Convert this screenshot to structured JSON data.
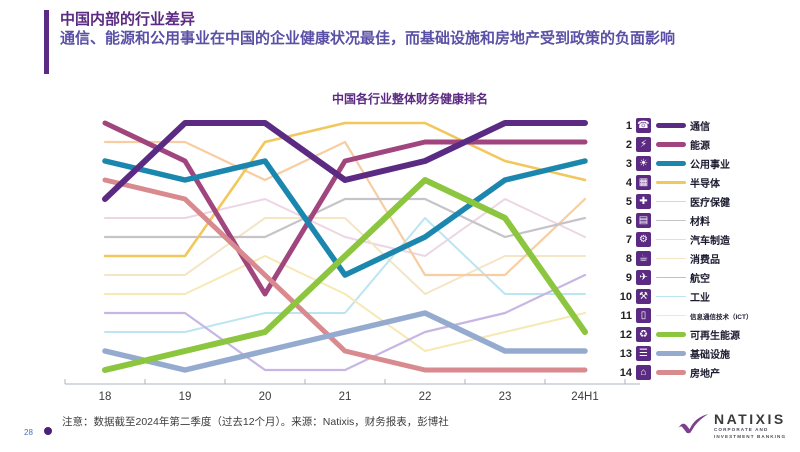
{
  "header": {
    "title": "中国内部的行业差异",
    "subtitle": "通信、能源和公用事业在中国的企业健康状况最佳，而基础设施和房地产受到政策的负面影响",
    "accent_color": "#5B2A82"
  },
  "chart": {
    "title": "中国各行业整体财务健康排名"
  },
  "chart_data": {
    "type": "line",
    "subtype": "bump-ranking",
    "title": "中国各行业整体财务健康排名",
    "x_labels": [
      "18",
      "19",
      "20",
      "21",
      "22",
      "23",
      "24H1"
    ],
    "y_axis": "rank (1 = best health, 14 = worst), 1 at top",
    "y_range": [
      1,
      14
    ],
    "grid": "off",
    "legend_position": "right",
    "series": [
      {
        "name": "通信",
        "icon": "satellite-dish-icon",
        "glyph": "☎",
        "color": "#5B2A82",
        "width": 6,
        "ranks": [
          5,
          1,
          1,
          4,
          3,
          1,
          1
        ]
      },
      {
        "name": "能源",
        "icon": "oil-pump-icon",
        "glyph": "⚡",
        "color": "#A0457E",
        "width": 5,
        "ranks": [
          1,
          3,
          10,
          3,
          2,
          2,
          2
        ]
      },
      {
        "name": "公用事业",
        "icon": "power-utility-icon",
        "glyph": "☀",
        "color": "#1B87AE",
        "width": 5.5,
        "ranks": [
          3,
          4,
          3,
          9,
          7,
          4,
          3
        ]
      },
      {
        "name": "半导体",
        "icon": "chip-icon",
        "glyph": "▦",
        "color": "#F2C75C",
        "width": 2.6,
        "ranks": [
          8,
          8,
          2,
          1,
          1,
          3,
          4
        ]
      },
      {
        "name": "医疗保健",
        "icon": "first-aid-icon",
        "glyph": "✚",
        "color": "#F8CDA2",
        "width": 2.2,
        "ranks": [
          2,
          2,
          4,
          2,
          9,
          9,
          5
        ]
      },
      {
        "name": "材料",
        "icon": "materials-icon",
        "glyph": "▤",
        "color": "#C6C4C8",
        "width": 2.2,
        "ranks": [
          7,
          7,
          7,
          5,
          5,
          7,
          6
        ]
      },
      {
        "name": "汽车制造",
        "icon": "car-icon",
        "glyph": "⚙",
        "color": "#EDD6E4",
        "width": 2,
        "ranks": [
          6,
          6,
          5,
          7,
          8,
          5,
          7
        ]
      },
      {
        "name": "消费品",
        "icon": "shopper-cart-icon",
        "glyph": "☕",
        "color": "#F4E5C5",
        "width": 2,
        "ranks": [
          9,
          9,
          6,
          6,
          10,
          8,
          8
        ]
      },
      {
        "name": "航空",
        "icon": "airplane-icon",
        "glyph": "✈",
        "color": "#C7B6E4",
        "width": 2.2,
        "ranks": [
          11,
          11,
          14,
          14,
          12,
          11,
          9
        ]
      },
      {
        "name": "工业",
        "icon": "factory-icon",
        "glyph": "⚒",
        "color": "#BCE5F2",
        "width": 2,
        "ranks": [
          12,
          12,
          11,
          11,
          6,
          10,
          10
        ]
      },
      {
        "name": "信息通信技术（ICT）",
        "icon": "tablet-icon",
        "glyph": "▯",
        "color": "#F5E9B4",
        "width": 2,
        "ranks": [
          10,
          10,
          8,
          10,
          13,
          12,
          11
        ]
      },
      {
        "name": "可再生能源",
        "icon": "wind-turbine-icon",
        "glyph": "♻",
        "color": "#8CC63F",
        "width": 6,
        "ranks": [
          14,
          13,
          12,
          8,
          4,
          6,
          12
        ]
      },
      {
        "name": "基础设施",
        "icon": "road-icon",
        "glyph": "☰",
        "color": "#94AACE",
        "width": 5.5,
        "ranks": [
          13,
          14,
          13,
          12,
          11,
          13,
          13
        ]
      },
      {
        "name": "房地产",
        "icon": "buildings-icon",
        "glyph": "⌂",
        "color": "#D98A8F",
        "width": 5,
        "ranks": [
          4,
          5,
          9,
          13,
          14,
          14,
          14
        ]
      }
    ]
  },
  "footer": {
    "note": "注意：数据截至2024年第二季度（过去12个月）。来源：Natixis，财务报表，彭博社",
    "page_number": "28"
  },
  "logo": {
    "brand": "NATIXIS",
    "tagline_line1": "CORPORATE AND",
    "tagline_line2": "INVESTMENT BANKING"
  }
}
